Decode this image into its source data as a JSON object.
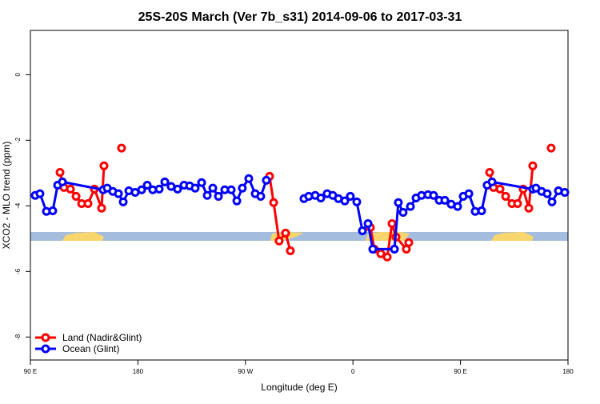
{
  "chart_data": {
    "type": "line",
    "title": "25S-20S March (Ver 7b_s31)   2014-09-06 to 2017-03-31",
    "x_label": "Longitude (deg E)",
    "y_label": "XCO2 - MLO trend (ppm)",
    "xlim": [
      90,
      540
    ],
    "xticks": [
      {
        "value": 90,
        "label": "90 E"
      },
      180,
      {
        "value": 270,
        "label": "90 W"
      },
      {
        "value": 360,
        "label": "0"
      },
      {
        "value": 450,
        "label": "90 E"
      },
      {
        "value": 540,
        "label": "180"
      }
    ],
    "ylim": [
      -8.7,
      1.35
    ],
    "yticks": [
      0,
      -2,
      -4,
      -6,
      -8
    ],
    "legend": "bottom-left",
    "series": [
      {
        "name": "Land (Nadir&Glint)",
        "color": "#ff0000",
        "x": [
          114.8,
          118.1,
          123.5,
          128.2,
          132.9,
          138.2,
          143.6,
          149.6,
          151.6,
          159.0,
          166.3,
          288.0,
          290.2,
          293.6,
          298.2,
          303.6,
          307.6,
          340.0,
          374.6,
          377.9,
          383.3,
          388.7,
          392.7,
          396.0,
          404.7,
          406.7,
          440.0,
          474.4,
          477.7,
          483.1,
          487.8,
          493.1,
          497.8,
          502.5,
          507.2,
          510.5,
          518.0,
          525.9
        ],
        "values": [
          -2.98,
          -3.44,
          -3.49,
          -3.71,
          -3.93,
          -3.93,
          -3.49,
          -4.07,
          -2.78,
          null,
          -2.24,
          null,
          -3.1,
          -3.9,
          -5.07,
          -4.83,
          -5.37,
          null,
          -4.66,
          -5.32,
          -5.46,
          -5.56,
          -4.54,
          -4.95,
          -5.32,
          -5.12,
          null,
          -2.98,
          -3.44,
          -3.49,
          -3.71,
          -3.93,
          -3.93,
          -3.49,
          -4.07,
          -2.78,
          null,
          -2.24
        ]
      },
      {
        "name": "Ocean (Glint)",
        "color": "#0000ff",
        "x": [
          94.0,
          98.0,
          103.4,
          108.7,
          112.8,
          116.8,
          150.9,
          154.3,
          159.0,
          163.7,
          167.7,
          172.4,
          177.7,
          183.1,
          187.8,
          192.4,
          197.8,
          202.5,
          207.8,
          213.2,
          218.6,
          223.3,
          227.9,
          233.3,
          238.0,
          242.7,
          247.4,
          252.7,
          258.1,
          262.8,
          267.4,
          272.8,
          278.2,
          282.8,
          287.5,
          300.0,
          319.0,
          323.0,
          328.4,
          333.1,
          338.4,
          343.1,
          347.8,
          353.2,
          357.8,
          363.2,
          367.9,
          372.6,
          376.6,
          394.7,
          398.0,
          402.0,
          408.1,
          412.8,
          417.4,
          422.8,
          427.5,
          432.2,
          436.9,
          442.2,
          447.6,
          452.3,
          457.0,
          462.3,
          467.7,
          472.3,
          476.4,
          510.5,
          513.2,
          517.9,
          522.6,
          526.6,
          532.0,
          537.3
        ],
        "values": [
          -3.68,
          -3.63,
          -4.17,
          -4.15,
          -3.37,
          -3.27,
          -3.51,
          -3.46,
          -3.56,
          -3.63,
          -3.88,
          -3.54,
          -3.59,
          -3.51,
          -3.37,
          -3.51,
          -3.49,
          -3.27,
          -3.41,
          -3.49,
          -3.37,
          -3.39,
          -3.46,
          -3.29,
          -3.68,
          -3.46,
          -3.71,
          -3.51,
          -3.51,
          -3.85,
          -3.46,
          -3.17,
          -3.63,
          -3.71,
          -3.22,
          null,
          -3.78,
          -3.71,
          -3.68,
          -3.76,
          -3.63,
          -3.68,
          -3.78,
          -3.85,
          -3.71,
          -3.88,
          -4.76,
          -4.54,
          -5.32,
          -5.32,
          -3.9,
          -4.2,
          -4.02,
          -3.76,
          -3.68,
          -3.66,
          -3.68,
          -3.83,
          -3.83,
          -3.95,
          -4.02,
          -3.71,
          -3.63,
          -4.17,
          -4.15,
          -3.37,
          -3.27,
          -3.49,
          -3.46,
          -3.56,
          -3.63,
          -3.88,
          -3.54,
          -3.59
        ]
      }
    ]
  }
}
